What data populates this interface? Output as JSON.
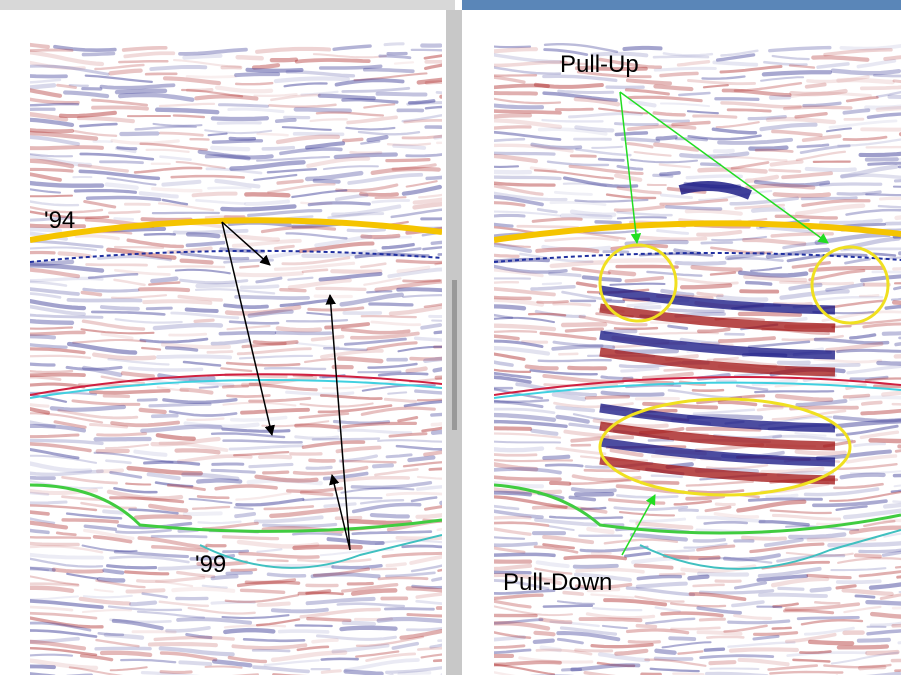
{
  "annotations": {
    "left": {
      "label_94": "'94",
      "label_99": "'99"
    },
    "right": {
      "pull_up": "Pull-Up",
      "pull_down": "Pull-Down"
    }
  }
}
